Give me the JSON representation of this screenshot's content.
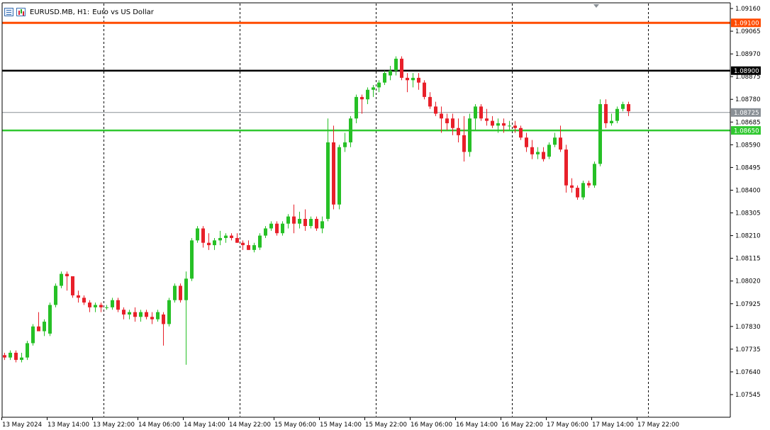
{
  "window": {
    "symbol_title": "EURUSD.MB, H1:",
    "description": "Euro vs US Dollar"
  },
  "colors": {
    "bull": "#26c026",
    "bear": "#e8202a",
    "grid": "#000000",
    "resistance_line": "#ff4b00",
    "key_level_line": "#000000",
    "bid_line": "#8a9096",
    "support_line": "#30c830"
  },
  "chart_data": {
    "type": "candlestick",
    "symbol": "EURUSD.MB",
    "timeframe": "H1",
    "y_range": [
      1.0746,
      1.09195
    ],
    "y_ticks": [
      "1.09160",
      "1.09065",
      "1.08970",
      "1.08875",
      "1.08780",
      "1.08685",
      "1.08590",
      "1.08495",
      "1.08400",
      "1.08305",
      "1.08210",
      "1.08115",
      "1.08020",
      "1.07925",
      "1.07830",
      "1.07735",
      "1.07640",
      "1.07545"
    ],
    "x_ticks": [
      "13 May 2024",
      "13 May 14:00",
      "13 May 22:00",
      "14 May 06:00",
      "14 May 14:00",
      "14 May 22:00",
      "15 May 06:00",
      "15 May 14:00",
      "15 May 22:00",
      "16 May 06:00",
      "16 May 14:00",
      "16 May 22:00",
      "17 May 06:00",
      "17 May 14:00",
      "17 May 22:00"
    ],
    "session_separators": [
      18,
      42,
      66,
      90,
      114
    ],
    "horizontal_levels": [
      {
        "price": 1.091,
        "label": "1.09100",
        "color": "#ff4b00",
        "width": 3
      },
      {
        "price": 1.089,
        "label": "1.08900",
        "color": "#000000",
        "width": 2.5
      },
      {
        "price": 1.08725,
        "label": "1.08725",
        "color": "#8a9096",
        "width": 1
      },
      {
        "price": 1.0865,
        "label": "1.08650",
        "color": "#30c830",
        "width": 2.5
      }
    ],
    "candles": [
      [
        1.0771,
        1.0772,
        1.0769,
        1.077
      ],
      [
        1.077,
        1.0773,
        1.0769,
        1.0772
      ],
      [
        1.0772,
        1.0773,
        1.0768,
        1.0769
      ],
      [
        1.0769,
        1.0772,
        1.0768,
        1.077
      ],
      [
        1.077,
        1.0777,
        1.0769,
        1.0776
      ],
      [
        1.0776,
        1.0784,
        1.0775,
        1.0783
      ],
      [
        1.0783,
        1.0789,
        1.0782,
        1.0781
      ],
      [
        1.0781,
        1.0786,
        1.0779,
        1.0785
      ],
      [
        1.078,
        1.0793,
        1.0779,
        1.0792
      ],
      [
        1.0792,
        1.0801,
        1.0791,
        1.08
      ],
      [
        1.08,
        1.0806,
        1.0799,
        1.0805
      ],
      [
        1.0805,
        1.0806,
        1.0798,
        1.0804
      ],
      [
        1.0804,
        1.0804,
        1.0795,
        1.0796
      ],
      [
        1.0796,
        1.0798,
        1.0793,
        1.0795
      ],
      [
        1.0795,
        1.0796,
        1.0792,
        1.0793
      ],
      [
        1.0793,
        1.0794,
        1.0789,
        1.0791
      ],
      [
        1.0791,
        1.0793,
        1.0789,
        1.0792
      ],
      [
        1.0792,
        1.0793,
        1.0789,
        1.0791
      ],
      [
        1.0791,
        1.0792,
        1.079,
        1.0791
      ],
      [
        1.0791,
        1.0795,
        1.079,
        1.0794
      ],
      [
        1.0794,
        1.0795,
        1.0789,
        1.079
      ],
      [
        1.079,
        1.0791,
        1.0786,
        1.0788
      ],
      [
        1.0788,
        1.079,
        1.0786,
        1.0789
      ],
      [
        1.0789,
        1.0791,
        1.0785,
        1.0787
      ],
      [
        1.0787,
        1.079,
        1.0785,
        1.0789
      ],
      [
        1.0789,
        1.079,
        1.0786,
        1.0787
      ],
      [
        1.0787,
        1.0789,
        1.0784,
        1.0786
      ],
      [
        1.0786,
        1.079,
        1.0785,
        1.0789
      ],
      [
        1.0788,
        1.0789,
        1.0775,
        1.0784
      ],
      [
        1.0784,
        1.0795,
        1.0783,
        1.0794
      ],
      [
        1.0794,
        1.0801,
        1.0793,
        1.08
      ],
      [
        1.08,
        1.0801,
        1.0793,
        1.0794
      ],
      [
        1.0794,
        1.0806,
        1.0767,
        1.0803
      ],
      [
        1.0803,
        1.082,
        1.0802,
        1.0819
      ],
      [
        1.0819,
        1.0825,
        1.0818,
        1.0824
      ],
      [
        1.0824,
        1.0825,
        1.0816,
        1.0818
      ],
      [
        1.0818,
        1.0822,
        1.0815,
        1.0817
      ],
      [
        1.0817,
        1.082,
        1.0815,
        1.0819
      ],
      [
        1.0819,
        1.0823,
        1.0817,
        1.082
      ],
      [
        1.082,
        1.0822,
        1.0818,
        1.0821
      ],
      [
        1.0821,
        1.0822,
        1.0819,
        1.082
      ],
      [
        1.082,
        1.0822,
        1.0818,
        1.0818
      ],
      [
        1.0818,
        1.0819,
        1.0815,
        1.0817
      ],
      [
        1.0817,
        1.0819,
        1.0815,
        1.0815
      ],
      [
        1.0815,
        1.0818,
        1.0814,
        1.0817
      ],
      [
        1.0816,
        1.0822,
        1.0815,
        1.0821
      ],
      [
        1.0821,
        1.0825,
        1.082,
        1.0824
      ],
      [
        1.0824,
        1.0827,
        1.0823,
        1.0826
      ],
      [
        1.0826,
        1.0827,
        1.0821,
        1.0822
      ],
      [
        1.0822,
        1.0827,
        1.0821,
        1.0826
      ],
      [
        1.0826,
        1.083,
        1.0824,
        1.0829
      ],
      [
        1.0829,
        1.0834,
        1.0822,
        1.0826
      ],
      [
        1.0826,
        1.0831,
        1.0824,
        1.0828
      ],
      [
        1.0828,
        1.0832,
        1.0823,
        1.0825
      ],
      [
        1.0825,
        1.0829,
        1.0824,
        1.0828
      ],
      [
        1.0828,
        1.0829,
        1.0823,
        1.0824
      ],
      [
        1.0824,
        1.0829,
        1.0822,
        1.0827
      ],
      [
        1.0828,
        1.087,
        1.0827,
        1.086
      ],
      [
        1.086,
        1.0867,
        1.0832,
        1.0834
      ],
      [
        1.0834,
        1.0859,
        1.0832,
        1.0858
      ],
      [
        1.0858,
        1.0864,
        1.0856,
        1.086
      ],
      [
        1.086,
        1.0871,
        1.0858,
        1.087
      ],
      [
        1.087,
        1.088,
        1.0868,
        1.0879
      ],
      [
        1.0879,
        1.088,
        1.0872,
        1.0878
      ],
      [
        1.0878,
        1.0883,
        1.0876,
        1.0882
      ],
      [
        1.0882,
        1.0884,
        1.0879,
        1.0883
      ],
      [
        1.0883,
        1.0886,
        1.0881,
        1.0885
      ],
      [
        1.0885,
        1.089,
        1.0884,
        1.0889
      ],
      [
        1.0888,
        1.0892,
        1.0886,
        1.089
      ],
      [
        1.089,
        1.0896,
        1.0888,
        1.0895
      ],
      [
        1.0895,
        1.0896,
        1.0886,
        1.0887
      ],
      [
        1.0887,
        1.0889,
        1.0881,
        1.0886
      ],
      [
        1.0886,
        1.0889,
        1.0883,
        1.0887
      ],
      [
        1.0887,
        1.0889,
        1.0882,
        1.0885
      ],
      [
        1.0885,
        1.0886,
        1.0878,
        1.0879
      ],
      [
        1.0879,
        1.0881,
        1.0874,
        1.0875
      ],
      [
        1.0875,
        1.0877,
        1.0871,
        1.0872
      ],
      [
        1.0872,
        1.0875,
        1.0864,
        1.087
      ],
      [
        1.087,
        1.0872,
        1.0865,
        1.0868
      ],
      [
        1.087,
        1.0872,
        1.0863,
        1.0866
      ],
      [
        1.0866,
        1.087,
        1.086,
        1.0863
      ],
      [
        1.0863,
        1.0871,
        1.0852,
        1.0856
      ],
      [
        1.0856,
        1.0872,
        1.0854,
        1.087
      ],
      [
        1.087,
        1.0876,
        1.0865,
        1.0875
      ],
      [
        1.0875,
        1.0876,
        1.0869,
        1.087
      ],
      [
        1.087,
        1.0874,
        1.0867,
        1.0869
      ],
      [
        1.0869,
        1.0871,
        1.0866,
        1.0867
      ],
      [
        1.0867,
        1.087,
        1.0864,
        1.0868
      ],
      [
        1.0868,
        1.087,
        1.0864,
        1.0867
      ],
      [
        1.0867,
        1.0869,
        1.0865,
        1.0867
      ],
      [
        1.0867,
        1.0869,
        1.0864,
        1.0866
      ],
      [
        1.0866,
        1.0867,
        1.0861,
        1.0862
      ],
      [
        1.0862,
        1.0864,
        1.0856,
        1.0858
      ],
      [
        1.0858,
        1.0861,
        1.0853,
        1.0855
      ],
      [
        1.0855,
        1.0858,
        1.0853,
        1.0856
      ],
      [
        1.0856,
        1.0858,
        1.0852,
        1.0853
      ],
      [
        1.0854,
        1.086,
        1.0853,
        1.0859
      ],
      [
        1.0859,
        1.0864,
        1.0858,
        1.0862
      ],
      [
        1.0862,
        1.0867,
        1.0856,
        1.0857
      ],
      [
        1.0857,
        1.0859,
        1.0839,
        1.0842
      ],
      [
        1.0842,
        1.0845,
        1.0839,
        1.0841
      ],
      [
        1.0841,
        1.0842,
        1.0836,
        1.0837
      ],
      [
        1.0837,
        1.0844,
        1.0836,
        1.0843
      ],
      [
        1.0843,
        1.0844,
        1.0841,
        1.0842
      ],
      [
        1.0842,
        1.0852,
        1.0841,
        1.0851
      ],
      [
        1.0851,
        1.0878,
        1.085,
        1.0876
      ],
      [
        1.0876,
        1.0878,
        1.0866,
        1.0868
      ],
      [
        1.0868,
        1.0872,
        1.0867,
        1.0869
      ],
      [
        1.0869,
        1.0875,
        1.0868,
        1.0874
      ],
      [
        1.0874,
        1.0877,
        1.0873,
        1.0876
      ],
      [
        1.0876,
        1.0877,
        1.0871,
        1.0873
      ]
    ]
  }
}
